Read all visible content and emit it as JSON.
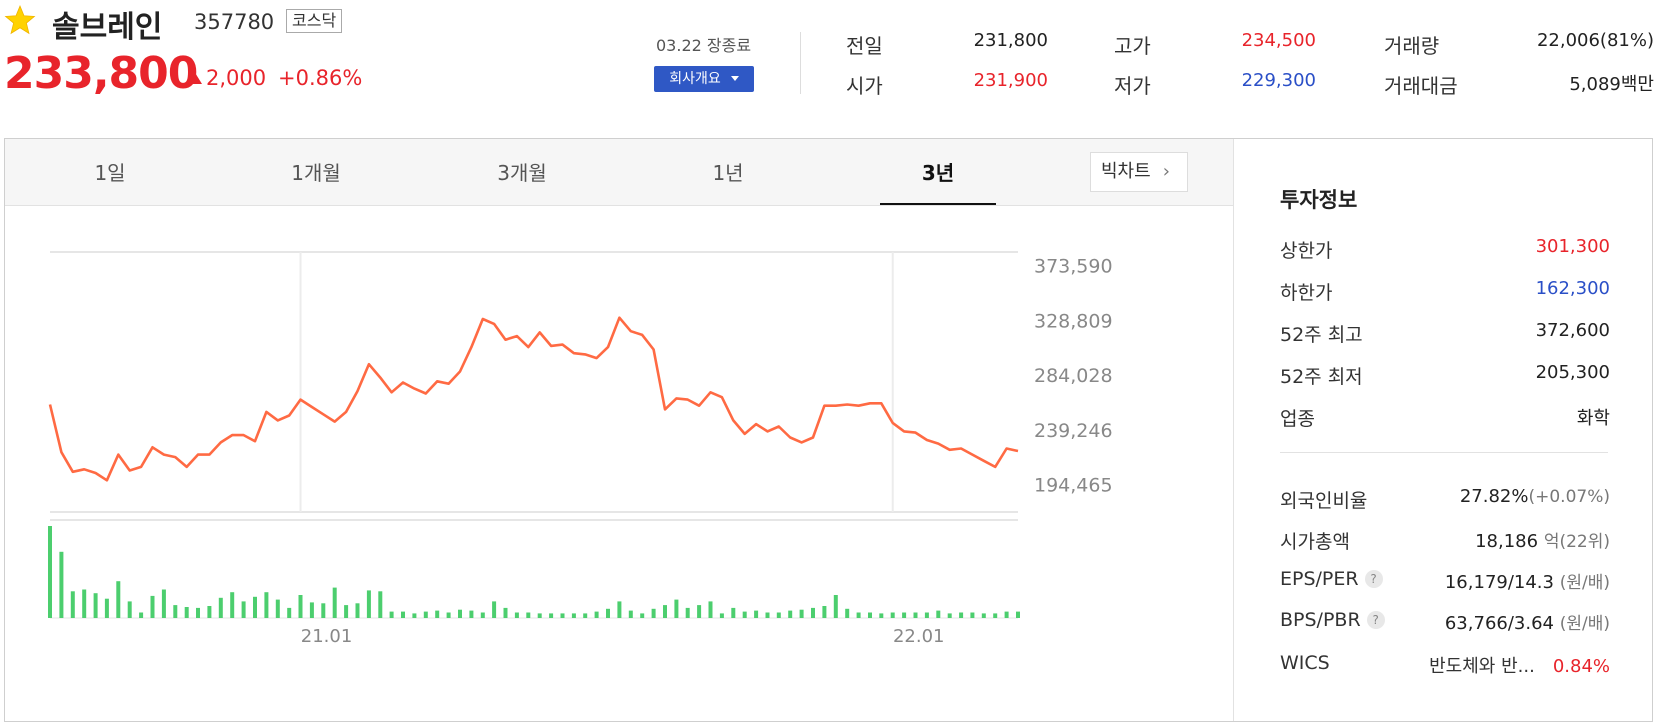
{
  "header": {
    "name": "솔브레인",
    "code": "357780",
    "market": "코스닥",
    "price": "233,800",
    "change": "2,000",
    "change_pct": "+0.86%",
    "session": "03.22 장종료",
    "company_button": "회사개요"
  },
  "stats": {
    "prev_label": "전일",
    "prev": "231,800",
    "open_label": "시가",
    "open": "231,900",
    "high_label": "고가",
    "high": "234,500",
    "low_label": "저가",
    "low": "229,300",
    "volume_label": "거래량",
    "volume": "22,006(81%)",
    "amount_label": "거래대금",
    "amount": "5,089백만"
  },
  "tabs": [
    "1일",
    "1개월",
    "3개월",
    "1년",
    "3년"
  ],
  "active_tab": "3년",
  "big_chart_label": "빅차트",
  "colors": {
    "up": "#e8242b",
    "down": "#2a4fc7",
    "line": "#ff6a43",
    "volume": "#4cce6e"
  },
  "chart_data": {
    "type": "line",
    "y_ticks": [
      "373,590",
      "328,809",
      "284,028",
      "239,246",
      "194,465"
    ],
    "ylim": [
      172075,
      384785
    ],
    "x_ticks": [
      "21.01",
      "22.01"
    ],
    "x_tick_index": [
      22,
      74
    ],
    "price": [
      260000,
      221000,
      205000,
      207000,
      204000,
      198000,
      219000,
      206000,
      209000,
      225000,
      219000,
      217000,
      209000,
      219000,
      219000,
      229000,
      235000,
      235000,
      230000,
      254000,
      247000,
      251000,
      264000,
      258000,
      252000,
      246000,
      254000,
      271000,
      293000,
      282000,
      270000,
      278000,
      273000,
      269000,
      279000,
      277000,
      287000,
      307000,
      330000,
      326000,
      313000,
      316000,
      307000,
      319000,
      308000,
      309000,
      302000,
      301000,
      298000,
      307000,
      331000,
      320000,
      317000,
      305000,
      256000,
      265000,
      264000,
      259000,
      270000,
      266000,
      247000,
      236000,
      244000,
      238000,
      242000,
      233000,
      229000,
      233000,
      259000,
      259000,
      260000,
      259000,
      261000,
      261000,
      245000,
      238000,
      237000,
      231000,
      228000,
      223000,
      224000,
      219000,
      214000,
      209000,
      224000,
      222000
    ],
    "volume": [
      100,
      72,
      29,
      31,
      27,
      21,
      40,
      18,
      6,
      24,
      31,
      14,
      12,
      11,
      13,
      22,
      28,
      18,
      23,
      28,
      20,
      11,
      25,
      17,
      16,
      33,
      14,
      16,
      30,
      29,
      7,
      7,
      5,
      7,
      8,
      6,
      9,
      8,
      6,
      18,
      11,
      6,
      6,
      5,
      5,
      5,
      5,
      5,
      7,
      10,
      18,
      8,
      5,
      10,
      14,
      20,
      11,
      14,
      18,
      5,
      11,
      7,
      8,
      6,
      6,
      8,
      9,
      11,
      13,
      25,
      10,
      6,
      6,
      5,
      6,
      6,
      6,
      6,
      8,
      5,
      6,
      6,
      5,
      5,
      7,
      7
    ]
  },
  "info": {
    "title": "투자정보",
    "rows1": [
      {
        "label": "상한가",
        "value": "301,300",
        "cls": "red"
      },
      {
        "label": "하한가",
        "value": "162,300",
        "cls": "blue"
      },
      {
        "label": "52주 최고",
        "value": "372,600",
        "cls": ""
      },
      {
        "label": "52주 최저",
        "value": "205,300",
        "cls": ""
      },
      {
        "label": "업종",
        "value": "화학",
        "cls": ""
      }
    ],
    "foreign_label": "외국인비율",
    "foreign_value": "27.82%",
    "foreign_sub": "(+0.07%)",
    "mcap_label": "시가총액",
    "mcap_value": "18,186",
    "mcap_unit": "억",
    "mcap_sub": "(22위)",
    "eps_label": "EPS/PER",
    "eps_value": "16,179/14.3",
    "eps_sub": "(원/배)",
    "bps_label": "BPS/PBR",
    "bps_value": "63,766/3.64",
    "bps_sub": "(원/배)",
    "wics_label": "WICS",
    "wics_value": "반도체와 반...",
    "wics_pct": "0.84%"
  }
}
